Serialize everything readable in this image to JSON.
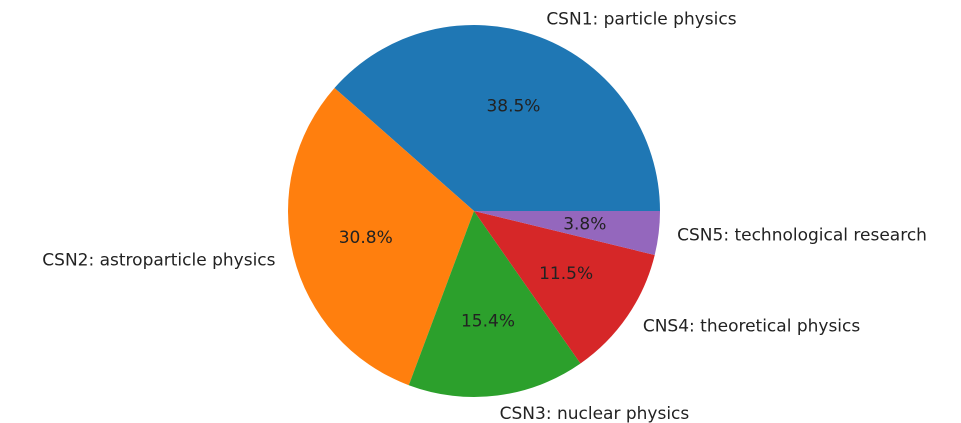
{
  "chart_data": {
    "type": "pie",
    "categories": [
      "CSN1: particle physics",
      "CSN2: astroparticle physics",
      "CSN3: nuclear physics",
      "CNS4: theoretical physics",
      "CSN5: technological research"
    ],
    "values": [
      38.5,
      30.8,
      15.4,
      11.5,
      3.8
    ],
    "value_labels": [
      "38.5%",
      "30.8%",
      "15.4%",
      "11.5%",
      "3.8%"
    ],
    "colors": [
      "#1f77b4",
      "#ff7f0e",
      "#2ca02c",
      "#d62728",
      "#9467bd"
    ]
  }
}
